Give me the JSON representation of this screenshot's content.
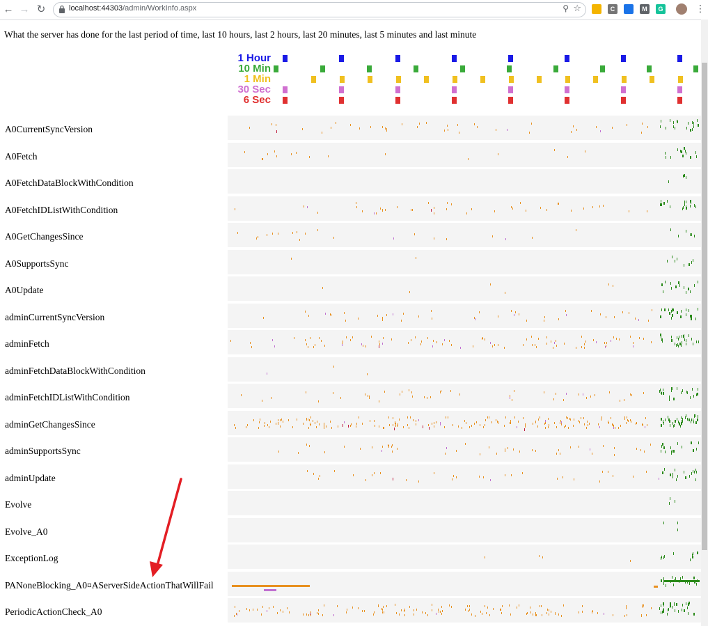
{
  "browser": {
    "url_host": "localhost:44303",
    "url_path": "/admin/WorkInfo.aspx",
    "extensions": [
      {
        "icon": "yellow-extension-icon",
        "color": "#f4b400",
        "glyph": ""
      },
      {
        "icon": "c-extension-icon",
        "color": "#757575",
        "glyph": "C"
      },
      {
        "icon": "globe-extension-icon",
        "color": "#1a73e8",
        "glyph": ""
      },
      {
        "icon": "m-extension-icon",
        "color": "#5f6368",
        "glyph": "M"
      },
      {
        "icon": "grammarly-extension-icon",
        "color": "#15c39a",
        "glyph": "G"
      }
    ]
  },
  "intro": "What the server has done for the last period of time, last 10 hours, last 2 hours, last 20 minutes, last 5 minutes and last minute",
  "legend": [
    {
      "label": "1 Hour",
      "color": "#1a1ae6"
    },
    {
      "label": "10 Min",
      "color": "#3aaa3a"
    },
    {
      "label": "1 Min",
      "color": "#f0c020"
    },
    {
      "label": "30 Sec",
      "color": "#d070d0"
    },
    {
      "label": "6 Sec",
      "color": "#e03030"
    }
  ],
  "rows": [
    {
      "name": "A0CurrentSyncVersion"
    },
    {
      "name": "A0Fetch"
    },
    {
      "name": "A0FetchDataBlockWithCondition"
    },
    {
      "name": "A0FetchIDListWithCondition"
    },
    {
      "name": "A0GetChangesSince"
    },
    {
      "name": "A0SupportsSync"
    },
    {
      "name": "A0Update"
    },
    {
      "name": "adminCurrentSyncVersion"
    },
    {
      "name": "adminFetch"
    },
    {
      "name": "adminFetchDataBlockWithCondition"
    },
    {
      "name": "adminFetchIDListWithCondition"
    },
    {
      "name": "adminGetChangesSince"
    },
    {
      "name": "adminSupportsSync"
    },
    {
      "name": "adminUpdate"
    },
    {
      "name": "Evolve"
    },
    {
      "name": "Evolve_A0"
    },
    {
      "name": "ExceptionLog"
    },
    {
      "name": "PANoneBlocking_A0¤AServerSideActionThatWillFail"
    },
    {
      "name": "PeriodicActionCheck_A0"
    }
  ],
  "colors": {
    "orange": "#e89020",
    "purple": "#c070d0",
    "red": "#c02040",
    "green": "#2a8a1a",
    "track": "#f4f4f4",
    "annotation_arrow": "#e31e24"
  }
}
